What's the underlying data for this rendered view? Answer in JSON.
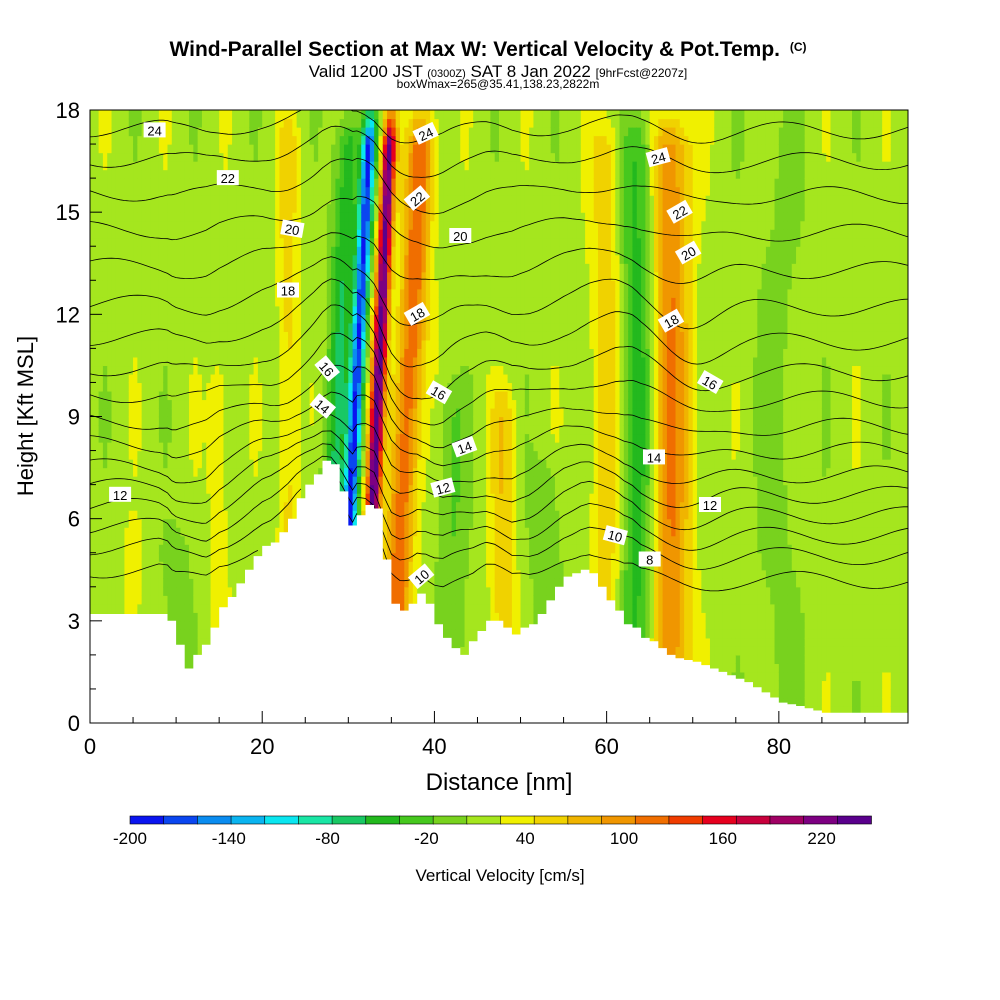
{
  "chart_data": {
    "type": "heatmap",
    "title": "Wind-Parallel Section at Max W: Vertical Velocity & Pot.Temp.",
    "title_mark": "(C)",
    "subtitle": {
      "valid": "Valid 1200 JST",
      "utc": "(0300Z)",
      "date": "SAT 8 Jan 2022",
      "fcst": "[9hrFcst@2207z]"
    },
    "box_note": "boxWmax=265@35.41,138.23,2822m",
    "xlabel": "Distance [nm]",
    "ylabel": "Height [Kft MSL]",
    "xlim": [
      0,
      95
    ],
    "ylim": [
      0,
      18
    ],
    "x_ticks": [
      "0",
      "20",
      "40",
      "60",
      "80"
    ],
    "y_ticks": [
      "0",
      "3",
      "6",
      "9",
      "12",
      "15",
      "18"
    ],
    "colorbar": {
      "label": "Vertical Velocity [cm/s]",
      "tick_labels": [
        "-200",
        "-140",
        "-80",
        "-20",
        "40",
        "100",
        "160",
        "220"
      ],
      "levels": [
        -200,
        -170,
        -140,
        -110,
        -80,
        -50,
        -20,
        10,
        40,
        70,
        100,
        130,
        160,
        190,
        220,
        250
      ],
      "colors": [
        "#0a14f0",
        "#0a46f0",
        "#0a8cf0",
        "#0ab4f0",
        "#0ae6f0",
        "#19e6a5",
        "#19c864",
        "#23b91e",
        "#46c81e",
        "#78d21e",
        "#a5e61e",
        "#f0f000",
        "#f0d200",
        "#f0b400",
        "#f09600",
        "#f06e00",
        "#f03c00",
        "#e6001e",
        "#c8003c",
        "#a00064",
        "#7d0082",
        "#5a008c"
      ]
    },
    "terrain_kft": [
      [
        0,
        3.2
      ],
      [
        4,
        3.2
      ],
      [
        8,
        3.2
      ],
      [
        9,
        3.0
      ],
      [
        10,
        2.3
      ],
      [
        11,
        1.6
      ],
      [
        12,
        2.0
      ],
      [
        13,
        2.3
      ],
      [
        14,
        2.8
      ],
      [
        15,
        3.4
      ],
      [
        16,
        3.7
      ],
      [
        17,
        4.1
      ],
      [
        18,
        4.5
      ],
      [
        19,
        4.9
      ],
      [
        20,
        5.2
      ],
      [
        21,
        5.3
      ],
      [
        22,
        5.6
      ],
      [
        23,
        6.0
      ],
      [
        24,
        6.6
      ],
      [
        25,
        7.0
      ],
      [
        26,
        7.3
      ],
      [
        27,
        7.7
      ],
      [
        28,
        7.6
      ],
      [
        29,
        6.8
      ],
      [
        30,
        5.8
      ],
      [
        30.5,
        5.4
      ],
      [
        31,
        6.1
      ],
      [
        32,
        6.4
      ],
      [
        33,
        6.3
      ],
      [
        34,
        4.8
      ],
      [
        35,
        3.5
      ],
      [
        36,
        3.3
      ],
      [
        37,
        3.5
      ],
      [
        38,
        3.8
      ],
      [
        39,
        3.5
      ],
      [
        40,
        2.9
      ],
      [
        41,
        2.5
      ],
      [
        42,
        2.2
      ],
      [
        43,
        2.0
      ],
      [
        44,
        2.4
      ],
      [
        45,
        2.7
      ],
      [
        46,
        3.0
      ],
      [
        47,
        3.0
      ],
      [
        48,
        2.8
      ],
      [
        49,
        2.6
      ],
      [
        50,
        2.8
      ],
      [
        51,
        2.9
      ],
      [
        52,
        3.2
      ],
      [
        53,
        3.6
      ],
      [
        54,
        4.0
      ],
      [
        55,
        4.3
      ],
      [
        56,
        4.4
      ],
      [
        57,
        4.5
      ],
      [
        58,
        4.4
      ],
      [
        59,
        4.0
      ],
      [
        60,
        3.6
      ],
      [
        61,
        3.3
      ],
      [
        62,
        2.9
      ],
      [
        63,
        2.8
      ],
      [
        64,
        2.5
      ],
      [
        65,
        2.4
      ],
      [
        66,
        2.2
      ],
      [
        67,
        2.0
      ],
      [
        68,
        1.9
      ],
      [
        70,
        1.8
      ],
      [
        72,
        1.6
      ],
      [
        74,
        1.4
      ],
      [
        76,
        1.2
      ],
      [
        78,
        0.9
      ],
      [
        80,
        0.6
      ],
      [
        82,
        0.5
      ],
      [
        85,
        0.3
      ],
      [
        88,
        0.3
      ],
      [
        91,
        0.3
      ],
      [
        95,
        0.3
      ]
    ],
    "updrafts": [
      {
        "x": 33.5,
        "w": 220,
        "width_nm": 0.8,
        "top_kft": 18,
        "tilt_nm_per_kft": 0.18
      },
      {
        "x": 37.0,
        "w": 110,
        "width_nm": 1.6,
        "top_kft": 18,
        "tilt_nm_per_kft": 0.22
      },
      {
        "x": 67.5,
        "w": 90,
        "width_nm": 2.2,
        "top_kft": 18,
        "tilt_nm_per_kft": 0.0
      },
      {
        "x": 60.0,
        "w": 45,
        "width_nm": 1.8,
        "top_kft": 18,
        "tilt_nm_per_kft": 0.0
      },
      {
        "x": 48.0,
        "w": 45,
        "width_nm": 1.5,
        "top_kft": 10,
        "tilt_nm_per_kft": 0.0
      },
      {
        "x": 23.0,
        "w": 40,
        "width_nm": 1.2,
        "top_kft": 18,
        "tilt_nm_per_kft": 0.0
      },
      {
        "x": 15.0,
        "w": 25,
        "width_nm": 1.2,
        "top_kft": 11,
        "tilt_nm_per_kft": 0.0
      },
      {
        "x": 5.0,
        "w": 25,
        "width_nm": 1.0,
        "top_kft": 6,
        "tilt_nm_per_kft": 0.0
      }
    ],
    "downdrafts": [
      {
        "x": 31.0,
        "w": -190,
        "width_nm": 0.8,
        "top_kft": 18,
        "tilt_nm_per_kft": 0.2
      },
      {
        "x": 28.8,
        "w": -70,
        "width_nm": 1.4,
        "top_kft": 18,
        "tilt_nm_per_kft": 0.18
      },
      {
        "x": 63.5,
        "w": -60,
        "width_nm": 2.0,
        "top_kft": 18,
        "tilt_nm_per_kft": 0.0
      },
      {
        "x": 42.0,
        "w": -30,
        "width_nm": 1.8,
        "top_kft": 10,
        "tilt_nm_per_kft": 0.0
      },
      {
        "x": 53.0,
        "w": -25,
        "width_nm": 2.0,
        "top_kft": 8,
        "tilt_nm_per_kft": 0.0
      },
      {
        "x": 80.0,
        "w": -15,
        "width_nm": 3.0,
        "top_kft": 18,
        "tilt_nm_per_kft": 0.0
      },
      {
        "x": 10.0,
        "w": -20,
        "width_nm": 2.0,
        "top_kft": 6,
        "tilt_nm_per_kft": 0.0
      }
    ],
    "background_w": 15,
    "theta_contours": [
      {
        "level": 8,
        "base_kft": 4.2
      },
      {
        "level": 9,
        "base_kft": 4.9
      },
      {
        "level": 10,
        "base_kft": 5.5
      },
      {
        "level": 11,
        "base_kft": 6.1
      },
      {
        "level": 12,
        "base_kft": 6.7
      },
      {
        "level": 13,
        "base_kft": 7.3
      },
      {
        "level": 14,
        "base_kft": 8.0
      },
      {
        "level": 15,
        "base_kft": 8.7
      },
      {
        "level": 16,
        "base_kft": 9.5
      },
      {
        "level": 17,
        "base_kft": 10.3
      },
      {
        "level": 18,
        "base_kft": 11.2
      },
      {
        "level": 19,
        "base_kft": 12.2
      },
      {
        "level": 20,
        "base_kft": 13.3
      },
      {
        "level": 21,
        "base_kft": 14.4
      },
      {
        "level": 22,
        "base_kft": 15.5
      },
      {
        "level": 23,
        "base_kft": 16.5
      },
      {
        "level": 24,
        "base_kft": 17.4
      }
    ],
    "contour_labels": [
      {
        "text": "24",
        "x": 7.5,
        "y": 17.4,
        "rot": 0
      },
      {
        "text": "22",
        "x": 16,
        "y": 16.0,
        "rot": 0
      },
      {
        "text": "20",
        "x": 23.5,
        "y": 14.5,
        "rot": 10
      },
      {
        "text": "18",
        "x": 23,
        "y": 12.7,
        "rot": 0
      },
      {
        "text": "16",
        "x": 27.5,
        "y": 10.4,
        "rot": 50
      },
      {
        "text": "14",
        "x": 27,
        "y": 9.3,
        "rot": 40
      },
      {
        "text": "12",
        "x": 3.5,
        "y": 6.7,
        "rot": 0
      },
      {
        "text": "24",
        "x": 39,
        "y": 17.3,
        "rot": -25
      },
      {
        "text": "22",
        "x": 38,
        "y": 15.4,
        "rot": -40
      },
      {
        "text": "20",
        "x": 43,
        "y": 14.3,
        "rot": 0
      },
      {
        "text": "18",
        "x": 38,
        "y": 12.0,
        "rot": -30
      },
      {
        "text": "16",
        "x": 40.5,
        "y": 9.7,
        "rot": 30
      },
      {
        "text": "14",
        "x": 43.5,
        "y": 8.1,
        "rot": -20
      },
      {
        "text": "12",
        "x": 41,
        "y": 6.9,
        "rot": -15
      },
      {
        "text": "10",
        "x": 38.5,
        "y": 4.3,
        "rot": -40
      },
      {
        "text": "24",
        "x": 66,
        "y": 16.6,
        "rot": -15
      },
      {
        "text": "22",
        "x": 68.5,
        "y": 15.0,
        "rot": -30
      },
      {
        "text": "20",
        "x": 69.5,
        "y": 13.8,
        "rot": -30
      },
      {
        "text": "18",
        "x": 67.5,
        "y": 11.8,
        "rot": -30
      },
      {
        "text": "16",
        "x": 72,
        "y": 10.0,
        "rot": 30
      },
      {
        "text": "14",
        "x": 65.5,
        "y": 7.8,
        "rot": 0
      },
      {
        "text": "12",
        "x": 72,
        "y": 6.4,
        "rot": 0
      },
      {
        "text": "10",
        "x": 61,
        "y": 5.5,
        "rot": 15
      },
      {
        "text": "8",
        "x": 65,
        "y": 4.8,
        "rot": 0
      }
    ]
  }
}
